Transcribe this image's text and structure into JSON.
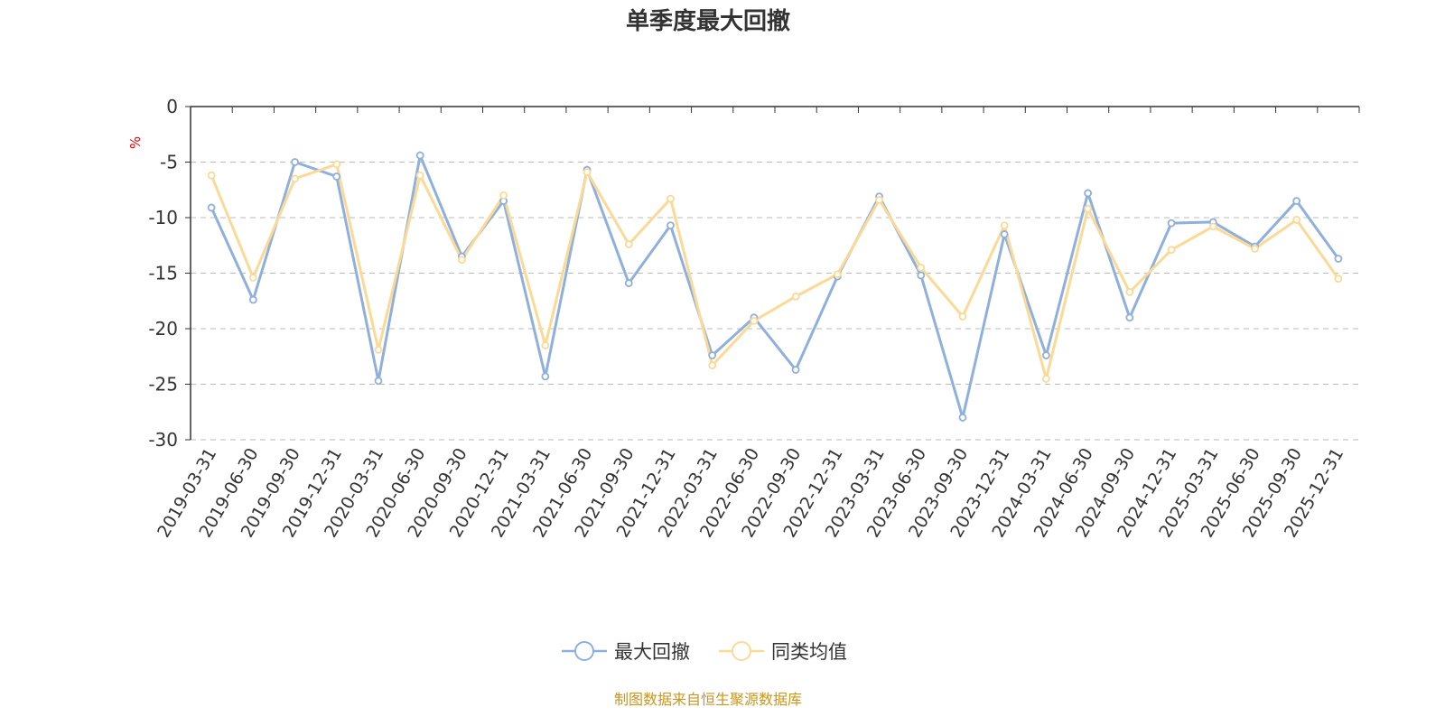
{
  "chart_data": {
    "type": "line",
    "title": "单季度最大回撤",
    "ylabel": "%",
    "xlabel": "",
    "ylim": [
      -30,
      0
    ],
    "yticks": [
      0,
      -5,
      -10,
      -15,
      -20,
      -25,
      -30
    ],
    "grid": true,
    "legend_position": "bottom",
    "categories": [
      "2019-03-31",
      "2019-06-30",
      "2019-09-30",
      "2019-12-31",
      "2020-03-31",
      "2020-06-30",
      "2020-09-30",
      "2020-12-31",
      "2021-03-31",
      "2021-06-30",
      "2021-09-30",
      "2021-12-31",
      "2022-03-31",
      "2022-06-30",
      "2022-09-30",
      "2022-12-31",
      "2023-03-31",
      "2023-06-30",
      "2023-09-30",
      "2023-12-31",
      "2024-03-31",
      "2024-06-30",
      "2024-09-30",
      "2024-12-31",
      "2025-03-31",
      "2025-06-30",
      "2025-09-30",
      "2025-12-31"
    ],
    "series": [
      {
        "name": "最大回撤",
        "color": "#8fb0dc",
        "values": [
          -9.1,
          -17.4,
          -5.0,
          -6.3,
          -24.7,
          -4.4,
          -13.5,
          -8.5,
          -24.3,
          -5.7,
          -15.9,
          -10.7,
          -22.4,
          -19.0,
          -23.7,
          -15.3,
          -8.1,
          -15.2,
          -28.0,
          -11.5,
          -22.4,
          -7.8,
          -19.0,
          -10.5,
          -10.4,
          -12.6,
          -8.5,
          -13.7
        ]
      },
      {
        "name": "同类均值",
        "color": "#fbd996",
        "values": [
          -6.2,
          -15.4,
          -6.5,
          -5.2,
          -21.9,
          -6.2,
          -13.8,
          -8.0,
          -21.5,
          -5.9,
          -12.4,
          -8.3,
          -23.3,
          -19.3,
          -17.1,
          -15.1,
          -8.4,
          -14.5,
          -18.9,
          -10.7,
          -24.5,
          -9.2,
          -16.7,
          -12.9,
          -10.8,
          -12.8,
          -10.2,
          -15.5
        ]
      }
    ]
  },
  "footer": {
    "source": "制图数据来自恒生聚源数据库",
    "source_color": "#c8961e"
  }
}
